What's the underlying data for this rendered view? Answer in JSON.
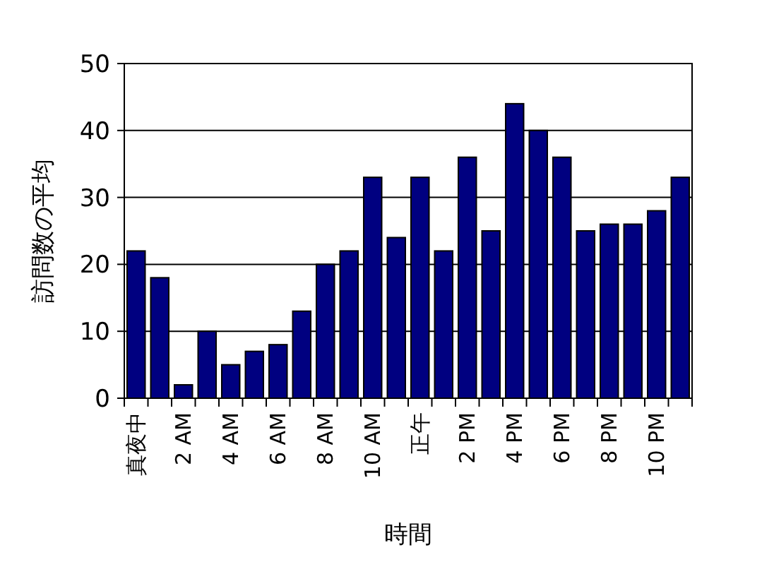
{
  "chart_data": {
    "type": "bar",
    "xlabel": "時間",
    "ylabel": "訪問数の平均",
    "categories": [
      "真夜中",
      null,
      "2 AM",
      null,
      "4 AM",
      null,
      "6 AM",
      null,
      "8 AM",
      null,
      "10 AM",
      null,
      "正午",
      null,
      "2 PM",
      null,
      "4 PM",
      null,
      "6 PM",
      null,
      "8 PM",
      null,
      "10 PM",
      null
    ],
    "values": [
      22,
      18,
      2,
      10,
      5,
      7,
      8,
      13,
      20,
      22,
      33,
      24,
      33,
      22,
      36,
      25,
      44,
      40,
      36,
      25,
      26,
      26,
      28,
      33
    ],
    "color": "#000080",
    "ylim": [
      0,
      50
    ],
    "yticks": [
      0,
      10,
      20,
      30,
      40,
      50
    ],
    "grid": "y"
  }
}
